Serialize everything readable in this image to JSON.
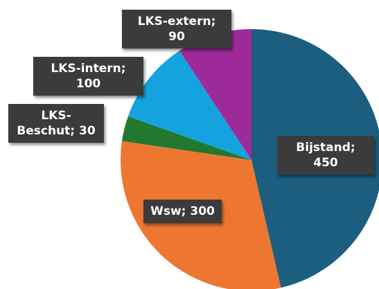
{
  "chart_data": {
    "type": "pie",
    "values": [
      450,
      300,
      30,
      100,
      90
    ],
    "value_labels": [
      "Bijstand; 450",
      "Wsw; 300",
      "LKS-Beschut; 30",
      "LKS-intern; 100",
      "LKS-extern; 90"
    ],
    "colors": [
      "#1b5e80",
      "#ed7630",
      "#23782f",
      "#14a3de",
      "#9e2a99"
    ]
  }
}
